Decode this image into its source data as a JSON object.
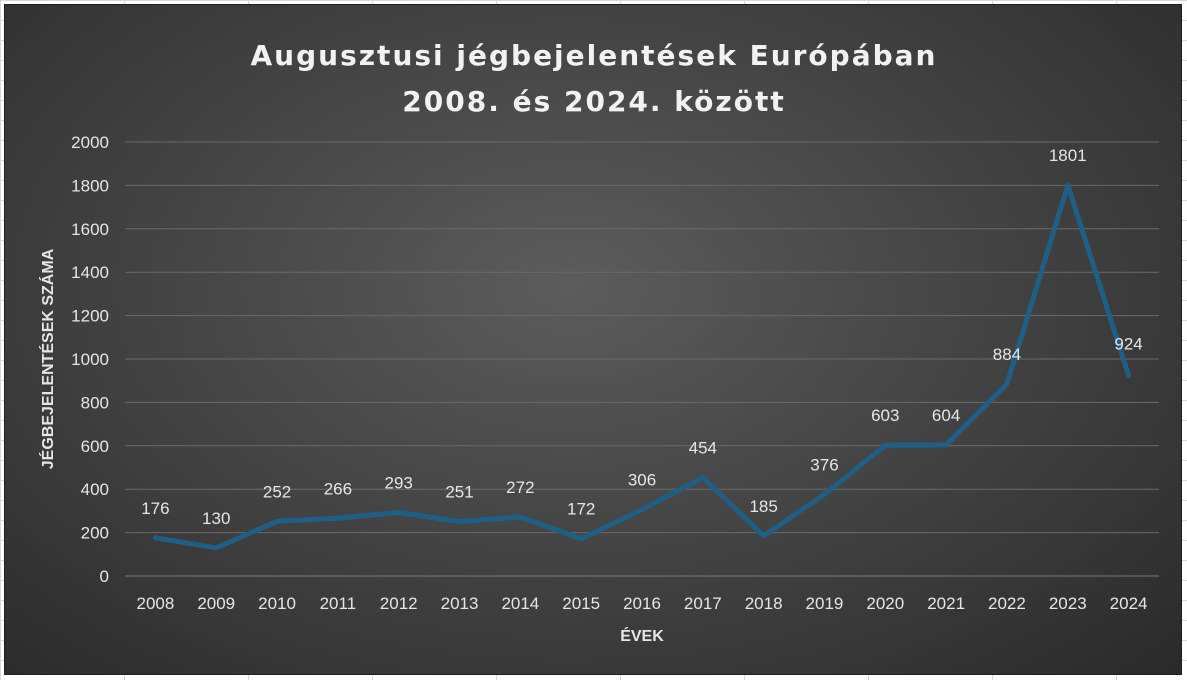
{
  "chart_data": {
    "type": "line",
    "title_lines": [
      "Augusztusi jégbejelentések Európában",
      "2008. és 2024. között"
    ],
    "xlabel": "ÉVEK",
    "ylabel": "JÉGBEJELENTÉSEK SZÁMA",
    "categories": [
      "2008",
      "2009",
      "2010",
      "2011",
      "2012",
      "2013",
      "2014",
      "2015",
      "2016",
      "2017",
      "2018",
      "2019",
      "2020",
      "2021",
      "2022",
      "2023",
      "2024"
    ],
    "series": [
      {
        "values": [
          176,
          130,
          252,
          266,
          293,
          251,
          272,
          172,
          306,
          454,
          185,
          376,
          603,
          604,
          884,
          1801,
          924
        ]
      }
    ],
    "ylim": [
      0,
      2000
    ],
    "yticks": [
      0,
      200,
      400,
      600,
      800,
      1000,
      1200,
      1400,
      1600,
      1800,
      2000
    ],
    "grid": true,
    "data_labels": true,
    "line_color": "#1f5f86"
  }
}
